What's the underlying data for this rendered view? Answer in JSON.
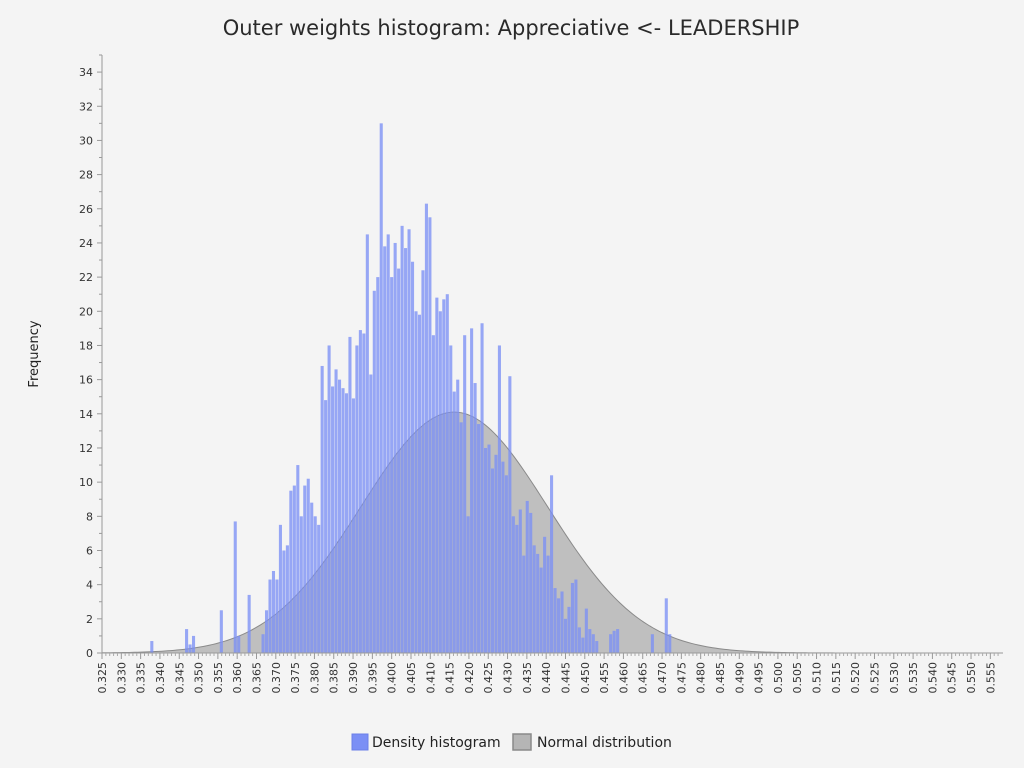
{
  "chart_data": {
    "type": "bar",
    "title": "Outer weights histogram: Appreciative <- LEADERSHIP",
    "xlabel": "",
    "ylabel": "Frequency",
    "xlim": [
      0.325,
      0.5575
    ],
    "ylim": [
      0,
      35
    ],
    "x_ticks": [
      "0.325",
      "0.330",
      "0.335",
      "0.340",
      "0.345",
      "0.350",
      "0.355",
      "0.360",
      "0.365",
      "0.370",
      "0.375",
      "0.380",
      "0.385",
      "0.390",
      "0.395",
      "0.400",
      "0.405",
      "0.410",
      "0.415",
      "0.420",
      "0.425",
      "0.430",
      "0.435",
      "0.440",
      "0.445",
      "0.450",
      "0.455",
      "0.460",
      "0.465",
      "0.470",
      "0.475",
      "0.480",
      "0.485",
      "0.490",
      "0.495",
      "0.500",
      "0.505",
      "0.510",
      "0.515",
      "0.520",
      "0.525",
      "0.530",
      "0.535",
      "0.540",
      "0.545",
      "0.550",
      "0.555"
    ],
    "y_ticks": [
      0,
      2,
      4,
      6,
      8,
      10,
      12,
      14,
      16,
      18,
      20,
      22,
      24,
      26,
      28,
      30,
      32,
      34
    ],
    "grid": false,
    "legend_position": "bottom",
    "colors": {
      "histogram": "#7b8ff5",
      "normal": "#b5b5b5",
      "overlap": "#6272cf"
    },
    "series": [
      {
        "name": "Density histogram",
        "type": "bar",
        "bin_start": 0.3375,
        "bin_width": 0.0009,
        "values": [
          0.7,
          0,
          0,
          0,
          0,
          0,
          0,
          0,
          0,
          0,
          1.4,
          0.5,
          1,
          0,
          0,
          0,
          0,
          0,
          0,
          0,
          2.5,
          0,
          0,
          0,
          7.7,
          1,
          0,
          0,
          3.4,
          0,
          0,
          0,
          1.1,
          2.5,
          4.3,
          4.8,
          4.3,
          7.5,
          6,
          6.3,
          9.5,
          9.8,
          11,
          8,
          9.8,
          10.2,
          8.8,
          8,
          7.5,
          16.8,
          14.8,
          18,
          15.6,
          16.6,
          16,
          15.5,
          15.2,
          18.5,
          14.9,
          18,
          18.9,
          18.7,
          24.5,
          16.3,
          21.2,
          22,
          31,
          23.8,
          24.5,
          22,
          24,
          22.5,
          25,
          23.7,
          24.8,
          22.9,
          20,
          19.8,
          22.4,
          26.3,
          25.5,
          18.6,
          20.8,
          20,
          20.7,
          21,
          18,
          15.3,
          16,
          13.5,
          18.6,
          8,
          19,
          15.8,
          13.4,
          19.3,
          12,
          12.2,
          10.8,
          11.6,
          18,
          11.2,
          10.4,
          16.2,
          8,
          7.5,
          8.4,
          5.7,
          8.9,
          8.2,
          6.3,
          5.8,
          5,
          6.8,
          5.7,
          10.4,
          3.8,
          3.2,
          3.6,
          2,
          2.7,
          4.1,
          4.3,
          1.5,
          0.9,
          2.6,
          1.4,
          1.1,
          0.7,
          0,
          0,
          0,
          1.1,
          1.3,
          1.4,
          0,
          0,
          0,
          0,
          0,
          0,
          0,
          0,
          0,
          1.1,
          0,
          0,
          0,
          3.2,
          1.1
        ]
      },
      {
        "name": "Normal distribution",
        "type": "area",
        "mean": 0.4162,
        "std": 0.0242,
        "peak": 14.1
      }
    ]
  }
}
